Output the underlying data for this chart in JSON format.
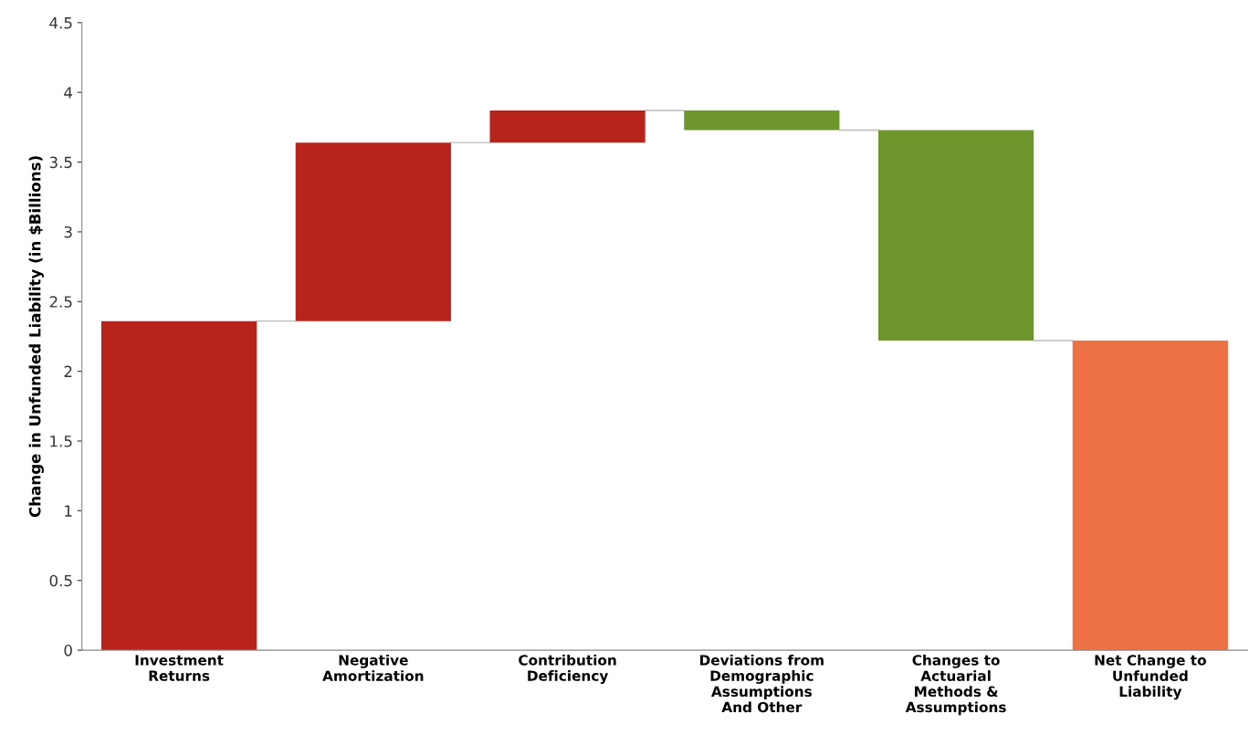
{
  "chart_data": {
    "type": "bar",
    "ylabel": "Change in Unfunded Liability (in $Billions)",
    "categories": [
      "Investment\nReturns",
      "Negative\nAmortization",
      "Contribution\nDeficiency",
      "Deviations from\nDemographic\nAssumptions\nAnd Other",
      "Changes to\nActuarial\nMethods &\nAssumptions",
      "Net Change to\nUnfunded\nLiability"
    ],
    "values": [
      2.36,
      1.28,
      0.23,
      -0.14,
      -1.51,
      2.22
    ],
    "base": [
      0,
      2.36,
      3.64,
      3.87,
      3.73,
      0
    ],
    "colors": [
      "#b8241c",
      "#b8241c",
      "#b8241c",
      "#6f962d",
      "#6f962d",
      "#ee7045"
    ],
    "ylim": [
      0,
      4.5
    ],
    "yticks": [
      0,
      0.5,
      1,
      1.5,
      2,
      2.5,
      3,
      3.5,
      4,
      4.5
    ],
    "grid": false
  }
}
